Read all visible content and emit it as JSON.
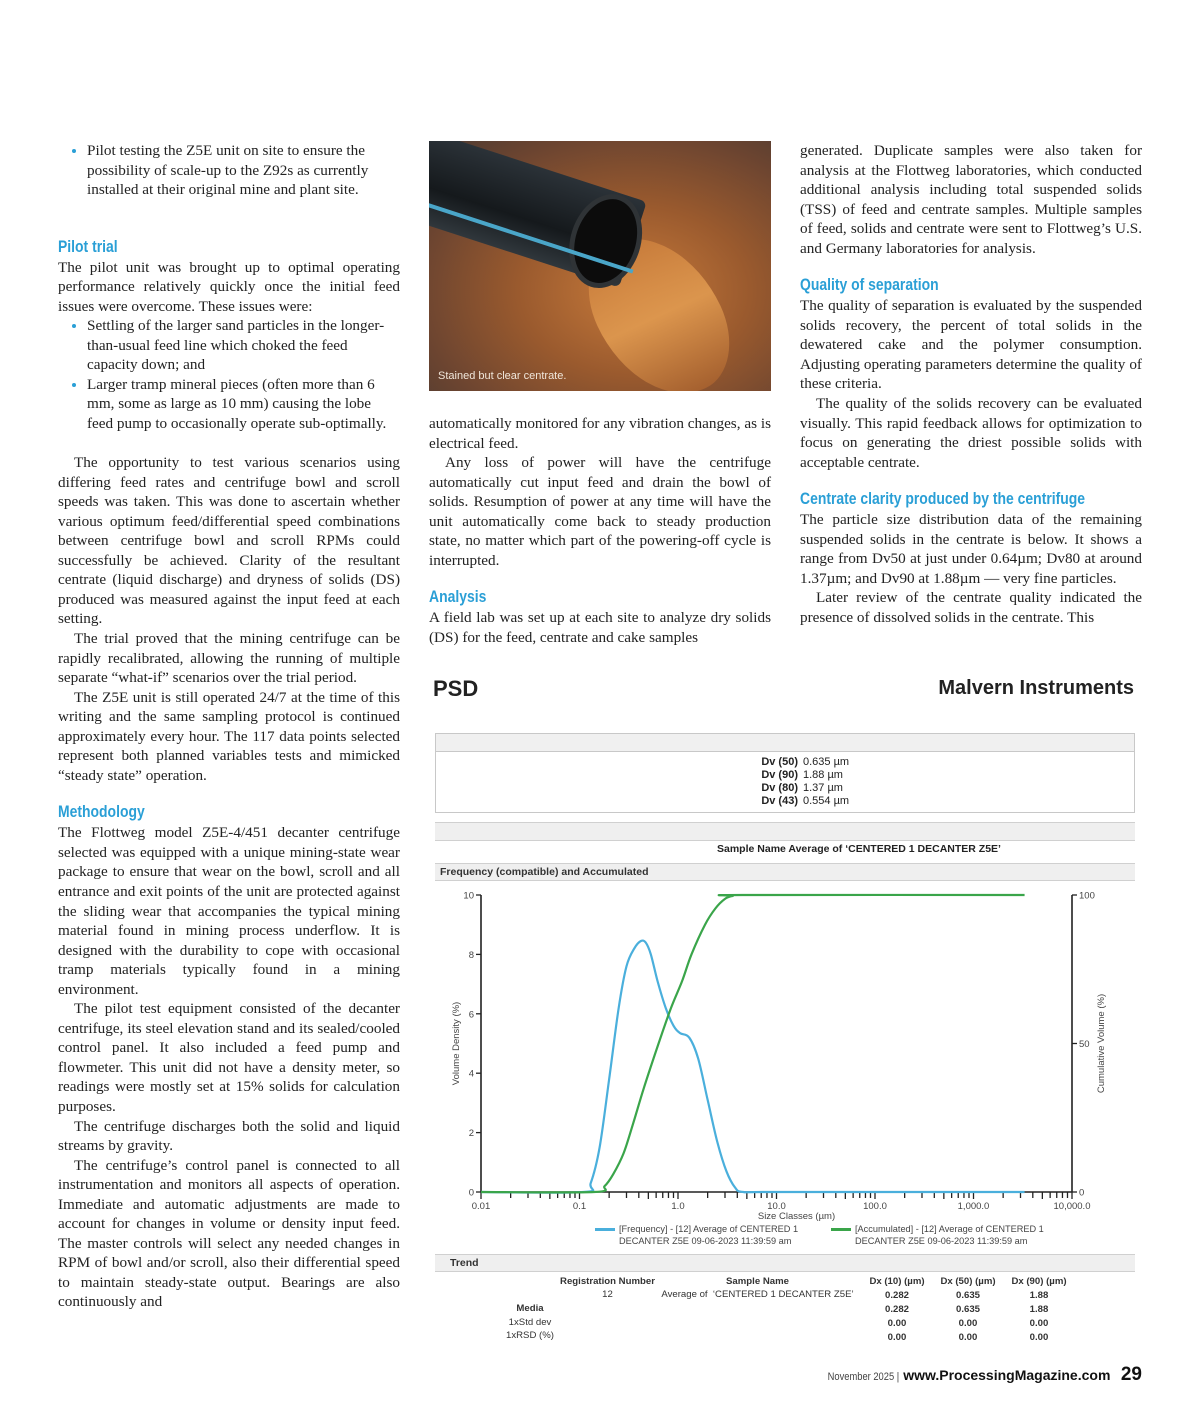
{
  "left": {
    "bullet0": "Pilot testing the Z5E unit on site to ensure the possibility of scale-up to the Z92s as currently installed at their original mine and plant site.",
    "h_pilot": "Pilot trial",
    "p1": "The pilot unit was brought up to optimal operating performance relatively quickly once the initial feed issues were overcome. These issues were:",
    "bullet1": "Settling of the larger sand particles in the longer-than-usual feed line which choked the feed capacity down; and",
    "bullet2": "Larger tramp mineral pieces (often more than 6 mm, some as large as 10 mm) causing the lobe feed pump to occasionally operate sub-optimally.",
    "p2": "The opportunity to test various scenarios using differing feed rates and centrifuge bowl and scroll speeds was taken. This was done to ascertain whether various optimum feed/differential speed combinations between centrifuge bowl and scroll RPMs could successfully be achieved. Clarity of the resultant centrate (liquid discharge) and dryness of solids (DS) produced was measured against the input feed at each setting.",
    "p3": "The trial proved that the mining centrifuge can be rapidly recalibrated, allowing the running of multiple separate “what-if” scenarios over the trial period.",
    "p4": "The Z5E unit is still operated 24/7 at the time of this writing and the same sampling protocol is continued approximately every hour. The 117 data points selected represent both planned variables tests and mimicked “steady state” operation.",
    "h_method": "Methodology",
    "p5": "The Flottweg model Z5E-4/451 decanter centrifuge selected was equipped with a unique mining-state wear package to ensure that wear on the bowl, scroll and all entrance and exit points of the unit are protected against the sliding wear that accompanies the typical mining material found in mining process underflow. It is designed with the durability to cope with occasional tramp materials typically found in a mining environment.",
    "p6": "The pilot test equipment consisted of the decanter centrifuge, its steel elevation stand and its sealed/cooled control panel. It also included a feed pump and flowmeter. This unit did not have a density meter, so readings were mostly set at 15% solids for calculation purposes.",
    "p7": "The centrifuge discharges both the solid and liquid streams by gravity.",
    "p8": "The centrifuge’s control panel is connected to all instrumentation and monitors all aspects of operation. Immediate and automatic adjustments are made to account for changes in volume or density input feed. The master controls will select any needed changes in RPM of bowl and/or scroll, also their differential speed to maintain steady-state output. Bearings are also continuously and"
  },
  "middle": {
    "caption": "Stained but clear centrate.",
    "p1": "automatically monitored for any vibration changes, as is electrical feed.",
    "p2": "Any loss of power will have the centrifuge automatically cut input feed and drain the bowl of solids. Resumption of power at any time will have the unit automatically come back to steady production state, no matter which part of the powering-off cycle is interrupted.",
    "h_analysis": "Analysis",
    "p3": "A field lab was set up at each site to analyze dry solids (DS) for the feed, centrate and cake samples"
  },
  "right": {
    "p1": "generated. Duplicate samples were also taken for analysis at the Flottweg laboratories, which conducted additional analysis including total suspended solids (TSS) of feed and centrate samples. Multiple samples of feed, solids and centrate were sent to Flottweg’s U.S. and Germany laboratories for analysis.",
    "h_quality": "Quality of separation",
    "p2": "The quality of separation is evaluated by the suspended solids recovery, the percent of total solids in the dewatered cake and the polymer consumption. Adjusting operating parameters determine the quality of these criteria.",
    "p3": "The quality of the solids recovery can be evaluated visually. This rapid feedback allows for optimization to focus on generating the driest possible solids with acceptable centrate.",
    "h_clarity": "Centrate clarity produced by the centrifuge",
    "p4": "The particle size distribution data of the remaining suspended solids in the centrate is below. It shows a range from Dv50 at just under 0.64µm; Dv80 at around 1.37µm; and Dv90 at 1.88µm — very fine particles.",
    "p5": "Later review of the centrate quality indicated the presence of dissolved solids in the centrate. This"
  },
  "report": {
    "title": "PSD",
    "brand": "Malvern Instruments",
    "dv": [
      {
        "k": "Dv (50)",
        "v": "0.635 µm"
      },
      {
        "k": "Dv (90)",
        "v": "1.88 µm"
      },
      {
        "k": "Dv (80)",
        "v": "1.37 µm"
      },
      {
        "k": "Dv (43)",
        "v": "0.554 µm"
      }
    ],
    "sample_name": "Sample Name Average of ‘CENTERED 1 DECANTER Z5E’",
    "section_chart": "Frequency (compatible) and Accumulated",
    "section_trend": "Trend",
    "table": {
      "headers": [
        "Registration Number",
        "Sample Name",
        "Dx (10) (µm)",
        "Dx (50) (µm)",
        "Dx (90) (µm)"
      ],
      "row": {
        "reg": "12",
        "name": "Average of  ‘CENTERED 1 DECANTER Z5E’",
        "v": [
          "0.282",
          "0.635",
          "1.88"
        ]
      },
      "stats": [
        {
          "label": "Media",
          "v": [
            "0.282",
            "0.635",
            "1.88"
          ]
        },
        {
          "label": "1xStd dev",
          "v": [
            "0.00",
            "0.00",
            "0.00"
          ]
        },
        {
          "label": "1xRSD (%)",
          "v": [
            "0.00",
            "0.00",
            "0.00"
          ]
        }
      ]
    }
  },
  "chart_data": {
    "type": "line",
    "xlabel": "Size Classes (µm)",
    "ylabel": "Volume Density (%)",
    "y2label": "Cumulative Volume (%)",
    "xscale": "log",
    "xlim": [
      0.01,
      10000
    ],
    "ylim": [
      0,
      10
    ],
    "y2lim": [
      0,
      100
    ],
    "xticks": [
      "0.01",
      "0.1",
      "1.0",
      "10.0",
      "100.0",
      "1,000.0",
      "10,000.0"
    ],
    "yticks": [
      "0",
      "2",
      "4",
      "6",
      "8",
      "10"
    ],
    "y2ticks": [
      "0",
      "50",
      "100"
    ],
    "grid": false,
    "legend": "bottom",
    "series": [
      {
        "name": "[Frequency] - [12] Average of CENTERED 1 DECANTER Z5E 09-06-2023 11:39:59 am",
        "axis": "left",
        "color": "#4aafdc",
        "x": [
          0.01,
          0.11,
          0.13,
          0.16,
          0.2,
          0.25,
          0.3,
          0.36,
          0.42,
          0.47,
          0.53,
          0.62,
          0.75,
          0.9,
          1.05,
          1.3,
          1.6,
          2.0,
          2.5,
          3.1,
          3.8,
          4.6,
          10,
          3300
        ],
        "y": [
          0,
          0,
          0.3,
          1.5,
          3.8,
          6.2,
          7.6,
          8.2,
          8.45,
          8.4,
          8.0,
          7.1,
          6.2,
          5.6,
          5.35,
          5.2,
          4.5,
          3.1,
          1.7,
          0.7,
          0.15,
          0,
          0,
          0
        ]
      },
      {
        "name": "[Accumulated] - [12] Average of CENTERED 1 DECANTER Z5E 09-06-2023 11:39:59 am",
        "axis": "right",
        "color": "#3aa54a",
        "x": [
          0.01,
          0.14,
          0.18,
          0.22,
          0.28,
          0.35,
          0.45,
          0.635,
          0.85,
          1.1,
          1.37,
          1.88,
          2.4,
          3.0,
          3.6,
          4.5,
          3300
        ],
        "y": [
          0,
          0,
          2,
          6,
          13,
          23,
          35,
          50,
          62,
          71,
          80,
          90,
          95.5,
          98.7,
          99.7,
          100,
          100
        ]
      }
    ]
  },
  "footer": {
    "date": "November 2025 |",
    "url": "www.ProcessingMagazine.com",
    "page": "29"
  },
  "colors": {
    "accent": "#2a9fd6"
  }
}
